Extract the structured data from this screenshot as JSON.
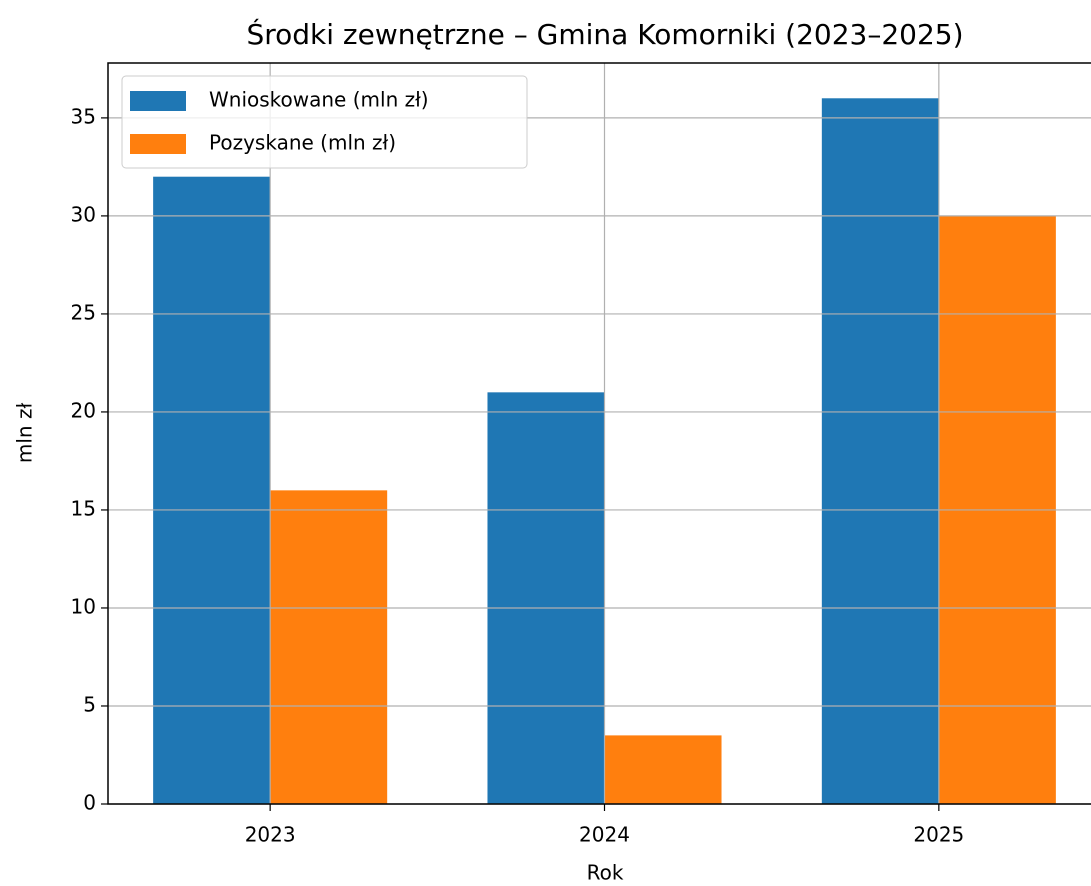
{
  "chart_data": {
    "type": "bar",
    "title": "Środki zewnętrzne – Gmina Komorniki (2023–2025)",
    "xlabel": "Rok",
    "ylabel": "mln zł",
    "categories": [
      "2023",
      "2024",
      "2025"
    ],
    "series": [
      {
        "name": "Wnioskowane (mln zł)",
        "color": "#1f77b4",
        "values": [
          32,
          21,
          36
        ]
      },
      {
        "name": "Pozyskane (mln zł)",
        "color": "#ff7f0e",
        "values": [
          16,
          3.5,
          30
        ]
      }
    ],
    "ylim": [
      0,
      37.8
    ],
    "yticks": [
      0,
      5,
      10,
      15,
      20,
      25,
      30,
      35
    ],
    "grid": true,
    "legend": "upper left"
  }
}
